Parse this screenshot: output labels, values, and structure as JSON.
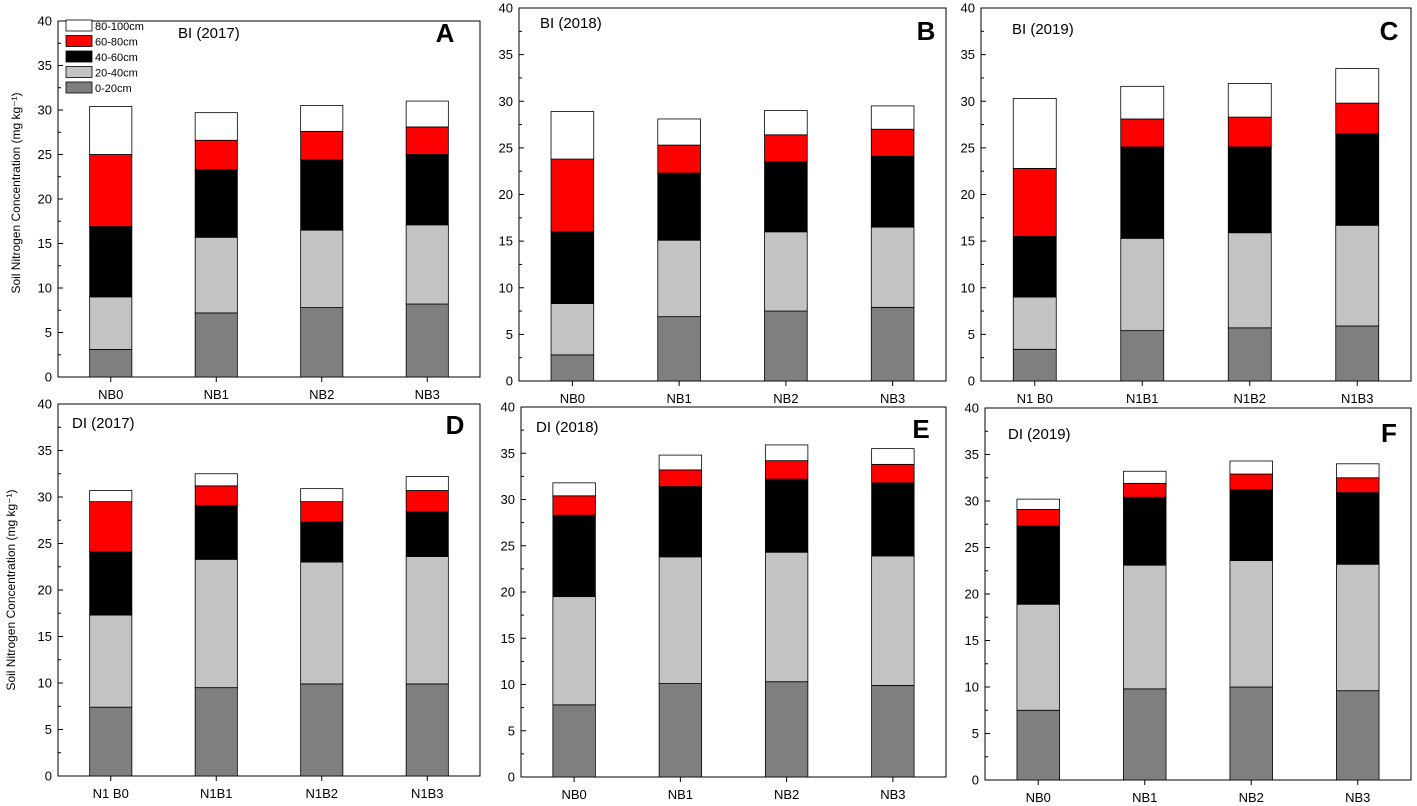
{
  "figure": {
    "y_axis_label_top": "Soil Nitrogen Concentration (mg kg⁻¹)",
    "y_axis_label_bottom": "Soil Nitrogen Concentration (mg kg⁻¹)",
    "legend_entries": [
      "80-100cm",
      "60-80cm",
      "40-60cm",
      "20-40cm",
      "0-20cm"
    ]
  },
  "colors": {
    "0-20cm": "#7f7f7f",
    "20-40cm": "#c3c3c3",
    "40-60cm": "#000000",
    "60-80cm": "#ff0000",
    "80-100cm": "#ffffff"
  },
  "chart_data": [
    {
      "panel": "A",
      "type": "bar",
      "stacked": true,
      "title": "BI    (2017)",
      "categories": [
        "NB0",
        "NB1",
        "NB2",
        "NB3"
      ],
      "ylim": [
        0,
        40
      ],
      "yticks": [
        0,
        5,
        10,
        15,
        20,
        25,
        30,
        35,
        40
      ],
      "series": [
        {
          "name": "0-20cm",
          "values": [
            3.1,
            7.2,
            7.8,
            8.2
          ]
        },
        {
          "name": "20-40cm",
          "values": [
            5.9,
            8.5,
            8.7,
            8.9
          ]
        },
        {
          "name": "40-60cm",
          "values": [
            7.9,
            7.6,
            7.9,
            7.9
          ]
        },
        {
          "name": "60-80cm",
          "values": [
            8.1,
            3.3,
            3.2,
            3.1
          ]
        },
        {
          "name": "80-100cm",
          "values": [
            5.4,
            3.1,
            2.9,
            2.9
          ]
        }
      ]
    },
    {
      "panel": "B",
      "type": "bar",
      "stacked": true,
      "title": "BI    (2018)",
      "categories": [
        "NB0",
        "NB1",
        "NB2",
        "NB3"
      ],
      "ylim": [
        0,
        40
      ],
      "yticks": [
        0,
        5,
        10,
        15,
        20,
        25,
        30,
        35,
        40
      ],
      "series": [
        {
          "name": "0-20cm",
          "values": [
            2.8,
            6.9,
            7.5,
            7.9
          ]
        },
        {
          "name": "20-40cm",
          "values": [
            5.5,
            8.2,
            8.5,
            8.6
          ]
        },
        {
          "name": "40-60cm",
          "values": [
            7.7,
            7.2,
            7.5,
            7.6
          ]
        },
        {
          "name": "60-80cm",
          "values": [
            7.8,
            3.0,
            2.9,
            2.9
          ]
        },
        {
          "name": "80-100cm",
          "values": [
            5.1,
            2.8,
            2.6,
            2.5
          ]
        }
      ]
    },
    {
      "panel": "C",
      "type": "bar",
      "stacked": true,
      "title": "BI    (2019)",
      "categories": [
        "N1 B0",
        "N1B1",
        "N1B2",
        "N1B3"
      ],
      "ylim": [
        0,
        40
      ],
      "yticks": [
        0,
        5,
        10,
        15,
        20,
        25,
        30,
        35,
        40
      ],
      "series": [
        {
          "name": "0-20cm",
          "values": [
            3.4,
            5.4,
            5.7,
            5.9
          ]
        },
        {
          "name": "20-40cm",
          "values": [
            5.6,
            9.9,
            10.2,
            10.8
          ]
        },
        {
          "name": "40-60cm",
          "values": [
            6.5,
            9.8,
            9.2,
            9.8
          ]
        },
        {
          "name": "60-80cm",
          "values": [
            7.3,
            3.0,
            3.2,
            3.3
          ]
        },
        {
          "name": "80-100cm",
          "values": [
            7.5,
            3.5,
            3.6,
            3.7
          ]
        }
      ]
    },
    {
      "panel": "D",
      "type": "bar",
      "stacked": true,
      "title": "DI    (2017)",
      "categories": [
        "N1 B0",
        "N1B1",
        "N1B2",
        "N1B3"
      ],
      "ylim": [
        0,
        40
      ],
      "yticks": [
        0,
        5,
        10,
        15,
        20,
        25,
        30,
        35,
        40
      ],
      "series": [
        {
          "name": "0-20cm",
          "values": [
            7.4,
            9.5,
            9.9,
            9.9
          ]
        },
        {
          "name": "20-40cm",
          "values": [
            9.9,
            13.8,
            13.1,
            13.7
          ]
        },
        {
          "name": "40-60cm",
          "values": [
            6.8,
            5.8,
            4.3,
            4.8
          ]
        },
        {
          "name": "60-80cm",
          "values": [
            5.4,
            2.1,
            2.2,
            2.3
          ]
        },
        {
          "name": "80-100cm",
          "values": [
            1.2,
            1.3,
            1.4,
            1.5
          ]
        }
      ]
    },
    {
      "panel": "E",
      "type": "bar",
      "stacked": true,
      "title": "DI    (2018)",
      "categories": [
        "NB0",
        "NB1",
        "NB2",
        "NB3"
      ],
      "ylim": [
        0,
        40
      ],
      "yticks": [
        0,
        5,
        10,
        15,
        20,
        25,
        30,
        35,
        40
      ],
      "series": [
        {
          "name": "0-20cm",
          "values": [
            7.8,
            10.1,
            10.3,
            9.9
          ]
        },
        {
          "name": "20-40cm",
          "values": [
            11.7,
            13.7,
            14.0,
            14.0
          ]
        },
        {
          "name": "40-60cm",
          "values": [
            8.8,
            7.6,
            7.9,
            7.9
          ]
        },
        {
          "name": "60-80cm",
          "values": [
            2.1,
            1.8,
            2.0,
            2.0
          ]
        },
        {
          "name": "80-100cm",
          "values": [
            1.4,
            1.6,
            1.7,
            1.7
          ]
        }
      ]
    },
    {
      "panel": "F",
      "type": "bar",
      "stacked": true,
      "title": "DI    (2019)",
      "categories": [
        "NB0",
        "NB1",
        "NB2",
        "NB3"
      ],
      "ylim": [
        0,
        40
      ],
      "yticks": [
        0,
        5,
        10,
        15,
        20,
        25,
        30,
        35,
        40
      ],
      "series": [
        {
          "name": "0-20cm",
          "values": [
            7.5,
            9.8,
            10.0,
            9.6
          ]
        },
        {
          "name": "20-40cm",
          "values": [
            11.4,
            13.3,
            13.6,
            13.6
          ]
        },
        {
          "name": "40-60cm",
          "values": [
            8.4,
            7.3,
            7.6,
            7.7
          ]
        },
        {
          "name": "60-80cm",
          "values": [
            1.8,
            1.5,
            1.7,
            1.6
          ]
        },
        {
          "name": "80-100cm",
          "values": [
            1.1,
            1.3,
            1.4,
            1.5
          ]
        }
      ]
    }
  ]
}
